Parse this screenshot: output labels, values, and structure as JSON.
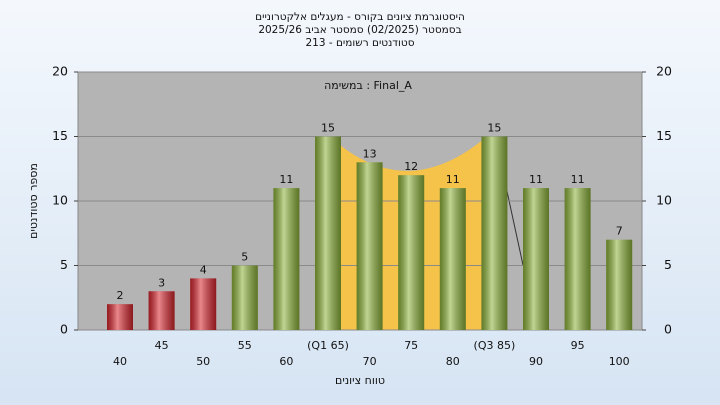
{
  "chart_data": {
    "type": "bar",
    "title": [
      "היסטוגרמת ציונים בקורס - מעגלים אלקטרוניים",
      "בסמסטר  (02/2025)  סמסטר אביב 2025/26",
      "סטודנטים רשומים - 213"
    ],
    "annotation": "במשימה : Final_A",
    "x_label": "טווח ציונים",
    "y_label": "מספר סטודנטים",
    "categories": [
      "40",
      "45",
      "50",
      "55",
      "60",
      "(Q1 65)",
      "70",
      "75",
      "80",
      "(Q3 85)",
      "90",
      "95",
      "100"
    ],
    "values": [
      2,
      3,
      4,
      5,
      11,
      15,
      13,
      12,
      11,
      15,
      11,
      11,
      7
    ],
    "colors": [
      "#d8262e",
      "#d8262e",
      "#d8262e",
      "#8db33a",
      "#8db33a",
      "#8db33a",
      "#8db33a",
      "#8db33a",
      "#8db33a",
      "#8db33a",
      "#8db33a",
      "#8db33a",
      "#8db33a"
    ],
    "ylim": [
      0,
      20
    ],
    "yticks": [
      0,
      5,
      10,
      15,
      20
    ],
    "grid": true
  }
}
